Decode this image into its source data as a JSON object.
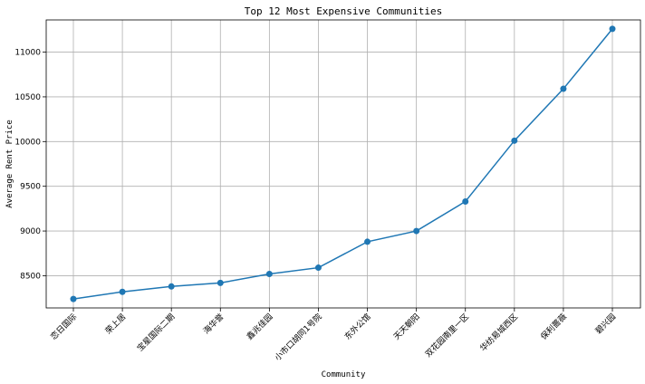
{
  "chart_data": {
    "type": "line",
    "title": "Top 12 Most Expensive Communities",
    "xlabel": "Community",
    "ylabel": "Average Rent Price",
    "categories": [
      "恋日国际",
      "荣上居",
      "宝星国际二期",
      "海华誉",
      "鑫兆佳园",
      "小市口胡同1号院",
      "东外公馆",
      "天天朝阳",
      "双花园南里一区",
      "华纺易城西区",
      "保利蔷薇",
      "碧兴园"
    ],
    "values": [
      8240,
      8320,
      8380,
      8420,
      8520,
      8590,
      8880,
      9000,
      9330,
      10010,
      10590,
      11260
    ],
    "yticks": [
      8500,
      9000,
      9500,
      10000,
      10500,
      11000
    ],
    "ylim": [
      8140,
      11360
    ],
    "grid": true,
    "colors": {
      "line": "#1f77b4",
      "marker": "#1f77b4",
      "grid": "#b0b0b0"
    }
  }
}
